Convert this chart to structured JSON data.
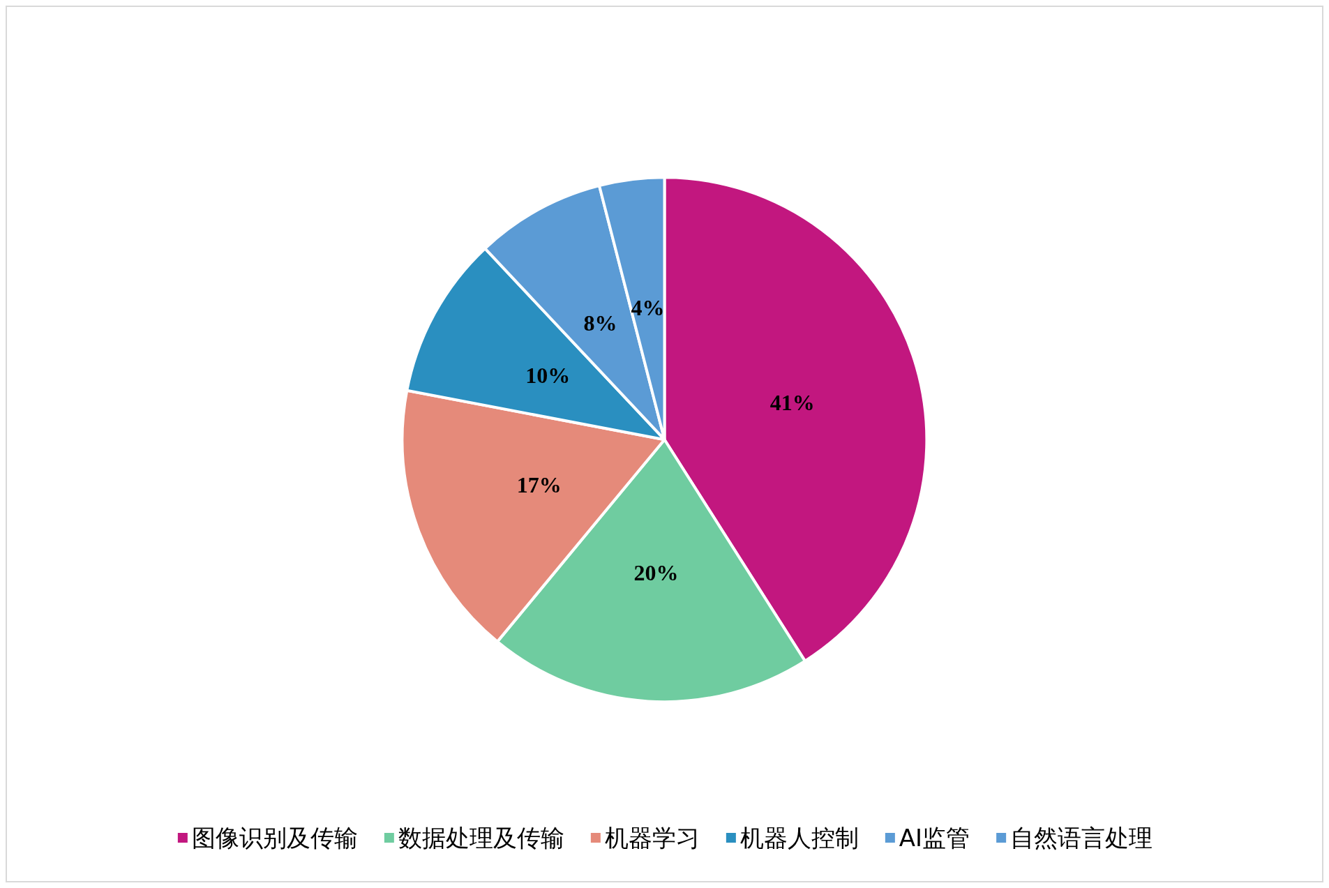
{
  "chart_data": {
    "type": "pie",
    "categories": [
      "图像识别及传输",
      "数据处理及传输",
      "机器学习",
      "机器人控制",
      "AI监管",
      "自然语言处理"
    ],
    "values": [
      41,
      20,
      17,
      10,
      8,
      4
    ],
    "colors": [
      "#c2177f",
      "#6fcca0",
      "#e58a7a",
      "#2a8fc0",
      "#5b9bd5",
      "#5b9bd5"
    ],
    "value_labels": [
      "41%",
      "20%",
      "17%",
      "10%",
      "8%",
      "4%"
    ],
    "legend": "bottom"
  }
}
